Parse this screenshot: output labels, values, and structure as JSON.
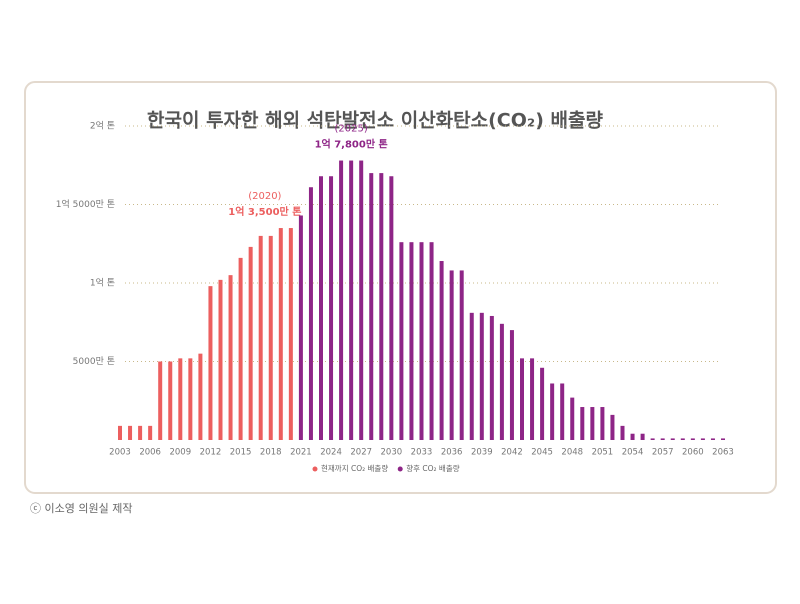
{
  "chart_data": {
    "type": "bar",
    "title": "한국이 투자한 해외 석탄발전소 이산화탄소(CO₂) 배출량",
    "categories": [
      "2003",
      null,
      null,
      "2006",
      null,
      null,
      "2009",
      null,
      null,
      "2012",
      null,
      null,
      "2015",
      null,
      null,
      "2018",
      null,
      null,
      "2021",
      null,
      null,
      "2024",
      null,
      null,
      "2027",
      null,
      null,
      "2030",
      null,
      null,
      "2033",
      null,
      null,
      "2036",
      null,
      null,
      "2039",
      null,
      null,
      "2042",
      null,
      null,
      "2045",
      null,
      null,
      "2048",
      null,
      null,
      "2051",
      null,
      null,
      "2054",
      null,
      null,
      "2057",
      null,
      null,
      "2060",
      null,
      null,
      "2063"
    ],
    "series": [
      {
        "name": "현재까지 CO₂ 배출량",
        "color": "#ec5f5f",
        "values": [
          900,
          900,
          900,
          900,
          5000,
          5000,
          5200,
          5200,
          5500,
          9800,
          10200,
          10500,
          11600,
          12300,
          13000,
          13000,
          13500,
          13500,
          null,
          null,
          null,
          null,
          null,
          null,
          null,
          null,
          null,
          null,
          null,
          null,
          null,
          null,
          null,
          null,
          null,
          null,
          null,
          null,
          null,
          null,
          null,
          null,
          null,
          null,
          null,
          null,
          null,
          null,
          null,
          null,
          null,
          null,
          null,
          null,
          null,
          null,
          null,
          null,
          null,
          null,
          null
        ],
        "annotation": {
          "label": "(2020)",
          "text": "1억 3,500만 톤"
        }
      },
      {
        "name": "향후 CO₂ 배출량",
        "color": "#8e2587",
        "values": [
          null,
          null,
          null,
          null,
          null,
          null,
          null,
          null,
          null,
          null,
          null,
          null,
          null,
          null,
          null,
          null,
          null,
          null,
          14300,
          16100,
          16800,
          16800,
          17800,
          17800,
          17800,
          17000,
          17000,
          16800,
          12600,
          12600,
          12600,
          12600,
          11400,
          10800,
          10800,
          8100,
          8100,
          7900,
          7400,
          7000,
          5200,
          5200,
          4600,
          3600,
          3600,
          2700,
          2100,
          2100,
          2100,
          1600,
          900,
          400,
          400,
          100,
          100,
          100,
          100,
          100,
          100,
          100,
          100
        ],
        "annotation": {
          "label": "(2025)",
          "text": "1억 7,800만 톤"
        }
      }
    ],
    "ylim": [
      0,
      20000
    ],
    "yticks": [
      {
        "value": 5000,
        "label": "5000만 톤"
      },
      {
        "value": 10000,
        "label": "1억 톤"
      },
      {
        "value": 15000,
        "label": "1억 5000만 톤"
      },
      {
        "value": 20000,
        "label": "2억 톤"
      }
    ],
    "grid": true,
    "source": "ⓒ 이소영 의원실 제작"
  }
}
